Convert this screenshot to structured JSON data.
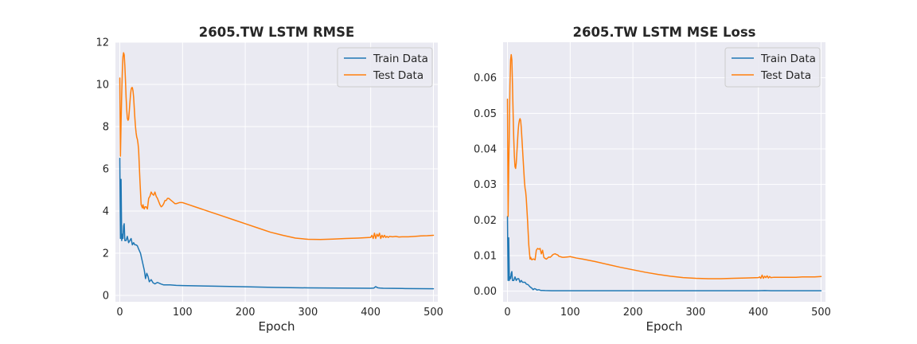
{
  "chart_data": [
    {
      "type": "line",
      "title": "2605.TW  LSTM RMSE",
      "xlabel": "Epoch",
      "ylabel": "",
      "xlim": [
        -7,
        507
      ],
      "ylim": [
        -0.3,
        12
      ],
      "xticks": [
        0,
        100,
        200,
        300,
        400,
        500
      ],
      "yticks": [
        0,
        2,
        4,
        6,
        8,
        10,
        12
      ],
      "ytick_labels": [
        "0",
        "2",
        "4",
        "6",
        "8",
        "10",
        "12"
      ],
      "grid": true,
      "legend_position": "top-right",
      "series": [
        {
          "name": "Train Data",
          "color": "#1f77b4",
          "x": [
            0,
            1,
            2,
            3,
            4,
            5,
            6,
            7,
            8,
            10,
            12,
            14,
            16,
            18,
            20,
            22,
            24,
            26,
            28,
            30,
            33,
            36,
            39,
            41,
            43,
            45,
            47,
            50,
            53,
            56,
            60,
            65,
            70,
            80,
            90,
            100,
            150,
            200,
            250,
            300,
            350,
            400,
            405,
            408,
            410,
            412,
            415,
            420,
            450,
            500
          ],
          "y": [
            6.5,
            2.7,
            5.5,
            2.6,
            2.9,
            2.7,
            3.3,
            3.4,
            2.6,
            2.6,
            2.8,
            2.5,
            2.6,
            2.7,
            2.4,
            2.5,
            2.4,
            2.4,
            2.35,
            2.2,
            2.0,
            1.6,
            1.2,
            0.8,
            1.05,
            0.9,
            0.65,
            0.75,
            0.6,
            0.55,
            0.62,
            0.55,
            0.5,
            0.5,
            0.48,
            0.47,
            0.44,
            0.41,
            0.38,
            0.36,
            0.35,
            0.34,
            0.35,
            0.42,
            0.38,
            0.36,
            0.35,
            0.34,
            0.33,
            0.32
          ]
        },
        {
          "name": "Test Data",
          "color": "#ff7f0e",
          "x": [
            0,
            1,
            2,
            3,
            4,
            5,
            6,
            7,
            8,
            9,
            10,
            11,
            12,
            13,
            14,
            15,
            16,
            17,
            18,
            19,
            20,
            21,
            22,
            23,
            24,
            25,
            26,
            27,
            28,
            29,
            30,
            32,
            34,
            36,
            37,
            38,
            39,
            40,
            42,
            44,
            46,
            48,
            50,
            52,
            54,
            56,
            58,
            60,
            62,
            64,
            66,
            68,
            70,
            72,
            74,
            76,
            78,
            80,
            82,
            84,
            86,
            88,
            90,
            95,
            100,
            110,
            120,
            140,
            160,
            180,
            200,
            220,
            240,
            260,
            280,
            300,
            320,
            340,
            360,
            380,
            400,
            402,
            404,
            406,
            408,
            410,
            412,
            414,
            416,
            418,
            420,
            422,
            424,
            426,
            428,
            430,
            435,
            440,
            445,
            450,
            460,
            470,
            480,
            490,
            500
          ],
          "y": [
            10.3,
            6.6,
            8.2,
            9.5,
            10.6,
            11.3,
            11.5,
            11.4,
            10.9,
            10.2,
            9.4,
            8.8,
            8.4,
            8.3,
            8.35,
            8.7,
            9.1,
            9.5,
            9.75,
            9.85,
            9.85,
            9.7,
            9.4,
            8.9,
            8.4,
            8.0,
            7.7,
            7.5,
            7.4,
            7.2,
            6.9,
            5.5,
            4.3,
            4.15,
            4.3,
            4.15,
            4.1,
            4.2,
            4.2,
            4.1,
            4.6,
            4.7,
            4.9,
            4.8,
            4.75,
            4.9,
            4.7,
            4.6,
            4.45,
            4.3,
            4.2,
            4.25,
            4.35,
            4.5,
            4.5,
            4.6,
            4.6,
            4.55,
            4.5,
            4.45,
            4.4,
            4.35,
            4.35,
            4.4,
            4.4,
            4.3,
            4.2,
            4.0,
            3.8,
            3.6,
            3.4,
            3.2,
            3.0,
            2.85,
            2.72,
            2.66,
            2.65,
            2.67,
            2.7,
            2.72,
            2.75,
            2.85,
            2.7,
            2.95,
            2.7,
            2.9,
            2.8,
            2.95,
            2.7,
            2.85,
            2.75,
            2.85,
            2.75,
            2.8,
            2.75,
            2.8,
            2.78,
            2.8,
            2.77,
            2.78,
            2.78,
            2.8,
            2.82,
            2.83,
            2.85
          ]
        }
      ]
    },
    {
      "type": "line",
      "title": "2605.TW  LSTM MSE Loss",
      "xlabel": "Epoch",
      "ylabel": "",
      "xlim": [
        -7,
        507
      ],
      "ylim": [
        -0.003,
        0.07
      ],
      "xticks": [
        0,
        100,
        200,
        300,
        400,
        500
      ],
      "yticks": [
        0,
        0.01,
        0.02,
        0.03,
        0.04,
        0.05,
        0.06
      ],
      "ytick_labels": [
        "0.00",
        "0.01",
        "0.02",
        "0.03",
        "0.04",
        "0.05",
        "0.06"
      ],
      "grid": true,
      "legend_position": "top-right",
      "series": [
        {
          "name": "Train Data",
          "color": "#1f77b4",
          "x": [
            0,
            1,
            2,
            3,
            4,
            5,
            6,
            7,
            8,
            10,
            12,
            14,
            16,
            18,
            20,
            22,
            24,
            26,
            28,
            30,
            33,
            36,
            39,
            41,
            43,
            45,
            47,
            50,
            53,
            56,
            60,
            70,
            80,
            100,
            200,
            300,
            400,
            410,
            420,
            500
          ],
          "y": [
            0.021,
            0.003,
            0.015,
            0.003,
            0.004,
            0.0035,
            0.005,
            0.0055,
            0.003,
            0.003,
            0.004,
            0.003,
            0.0035,
            0.0035,
            0.0025,
            0.003,
            0.0025,
            0.0025,
            0.0025,
            0.002,
            0.0018,
            0.0012,
            0.0008,
            0.0004,
            0.0007,
            0.0006,
            0.0003,
            0.0004,
            0.0002,
            0.0002,
            0.00015,
            0.0001,
            0.0001,
            0.0001,
            0.0001,
            0.0001,
            0.0001,
            0.00015,
            0.0001,
            0.0001
          ]
        },
        {
          "name": "Test Data",
          "color": "#ff7f0e",
          "x": [
            0,
            1,
            2,
            3,
            4,
            5,
            6,
            7,
            8,
            9,
            10,
            11,
            12,
            13,
            14,
            15,
            16,
            17,
            18,
            19,
            20,
            21,
            22,
            23,
            24,
            25,
            26,
            27,
            28,
            29,
            30,
            32,
            34,
            36,
            37,
            38,
            39,
            40,
            42,
            44,
            46,
            48,
            50,
            52,
            54,
            56,
            58,
            60,
            62,
            64,
            66,
            68,
            70,
            72,
            74,
            76,
            78,
            80,
            82,
            84,
            86,
            88,
            90,
            95,
            100,
            110,
            120,
            140,
            160,
            180,
            200,
            220,
            240,
            260,
            280,
            300,
            320,
            340,
            360,
            380,
            400,
            402,
            404,
            406,
            408,
            410,
            412,
            414,
            416,
            418,
            420,
            425,
            430,
            440,
            450,
            460,
            470,
            480,
            490,
            500
          ],
          "y": [
            0.054,
            0.021,
            0.035,
            0.045,
            0.058,
            0.065,
            0.0665,
            0.065,
            0.058,
            0.05,
            0.043,
            0.038,
            0.035,
            0.0345,
            0.036,
            0.039,
            0.042,
            0.045,
            0.047,
            0.048,
            0.0485,
            0.048,
            0.046,
            0.043,
            0.04,
            0.037,
            0.034,
            0.031,
            0.029,
            0.028,
            0.026,
            0.02,
            0.013,
            0.009,
            0.0095,
            0.009,
            0.0088,
            0.009,
            0.009,
            0.0088,
            0.0115,
            0.012,
            0.0118,
            0.012,
            0.0105,
            0.0115,
            0.0095,
            0.0092,
            0.009,
            0.0093,
            0.0096,
            0.0095,
            0.0098,
            0.0102,
            0.0104,
            0.0105,
            0.0103,
            0.0102,
            0.0098,
            0.0097,
            0.0096,
            0.0095,
            0.0095,
            0.0096,
            0.0097,
            0.0093,
            0.009,
            0.0083,
            0.0075,
            0.0067,
            0.006,
            0.0053,
            0.0047,
            0.0042,
            0.0038,
            0.0036,
            0.0035,
            0.0035,
            0.0036,
            0.0037,
            0.0038,
            0.004,
            0.0036,
            0.0045,
            0.0036,
            0.0042,
            0.0038,
            0.0043,
            0.0037,
            0.0041,
            0.0038,
            0.0039,
            0.0039,
            0.0039,
            0.0039,
            0.0039,
            0.004,
            0.004,
            0.004,
            0.0041
          ]
        }
      ]
    }
  ]
}
